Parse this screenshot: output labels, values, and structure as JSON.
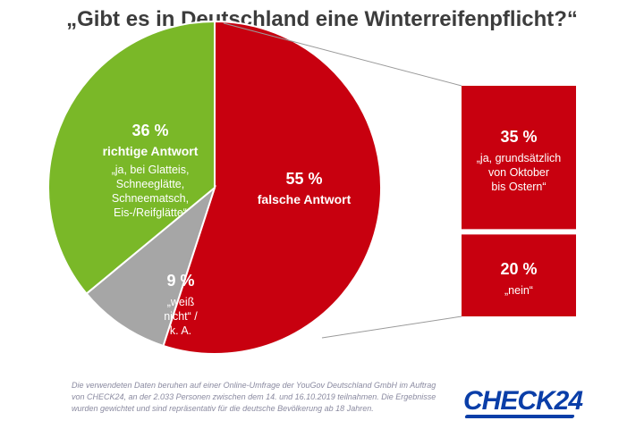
{
  "title": "„Gibt es in Deutschland eine Winterreifenpflicht?“",
  "colors": {
    "green": "#7ab828",
    "red": "#c8000f",
    "gray": "#a6a6a6",
    "connector": "#9a9a9a",
    "logo": "#0a3ea8"
  },
  "chart_data": {
    "type": "pie",
    "slices": [
      {
        "key": "wrong",
        "value": 55,
        "percent_label": "55 %",
        "category": "falsche Antwort",
        "description": [],
        "breakdown": [
          {
            "value": 35,
            "percent_label": "35 %",
            "description": [
              "„ja, grundsätzlich",
              "von Oktober",
              "bis Ostern“"
            ]
          },
          {
            "value": 20,
            "percent_label": "20 %",
            "description": [
              "„nein“"
            ]
          }
        ]
      },
      {
        "key": "dontknow",
        "value": 9,
        "percent_label": "9 %",
        "category": "",
        "description": [
          "„weiß",
          "nicht“ /",
          "k. A."
        ]
      },
      {
        "key": "right",
        "value": 36,
        "percent_label": "36 %",
        "category": "richtige Antwort",
        "description": [
          "„ja, bei Glatteis,",
          "Schneeglätte,",
          "Schneematsch,",
          "Eis-/Reifglätte“"
        ]
      }
    ]
  },
  "footnote": "Die verwendeten Daten beruhen auf einer Online-Umfrage der YouGov Deutschland GmbH im Auftrag von CHECK24, an der 2.033 Personen zwischen dem 14. und 16.10.2019 teilnahmen. Die Ergebnisse wurden gewichtet und sind repräsentativ für die deutsche Bevölkerung ab 18 Jahren.",
  "logo": "CHECK24"
}
